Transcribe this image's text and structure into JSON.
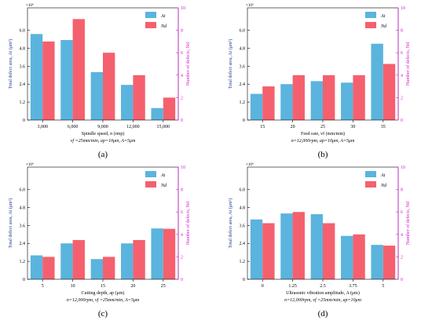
{
  "colors": {
    "area": "#5ab4de",
    "defects": "#f5606e",
    "right_axis": "#cc22cc",
    "left_axis_label": "#1f3c8c"
  },
  "chart_data": [
    {
      "type": "bar",
      "panel_label": "(a)",
      "xlabel": "Spindle speed, n (rmp)",
      "caption": "vf =25mm/min, ap=10μm, A=5μm",
      "ylabel_left": "Total defect area, At (μm²)",
      "ylabel_right": "Number of defects, Nd",
      "y_left_multiplier": "×10⁴",
      "ylim_left": [
        0,
        7.5
      ],
      "ylim_right": [
        0,
        10
      ],
      "yticks_left": [
        "0",
        "1.2",
        "2.4",
        "3.6",
        "4.8",
        "6.0"
      ],
      "yticks_right": [
        "0",
        "2",
        "4",
        "6",
        "8",
        "10"
      ],
      "categories": [
        "3,000",
        "6,000",
        "9,000",
        "12,000",
        "15,000"
      ],
      "legend": [
        "At",
        "Nd"
      ],
      "series": [
        {
          "name": "At",
          "values": [
            5.75,
            5.35,
            3.2,
            2.35,
            0.8
          ]
        },
        {
          "name": "Nd",
          "values": [
            7.0,
            9.0,
            6.0,
            4.0,
            2.0
          ]
        }
      ]
    },
    {
      "type": "bar",
      "panel_label": "(b)",
      "xlabel": "Feed rate, vf (mm/min)",
      "caption": "n=12,000rpm, ap=10μm, A=5μm",
      "ylabel_left": "Total defect area, At (μm²)",
      "ylabel_right": "Number of defects, Nd",
      "y_left_multiplier": "×10⁴",
      "ylim_left": [
        0,
        7.5
      ],
      "ylim_right": [
        0,
        10
      ],
      "yticks_left": [
        "0",
        "1.2",
        "2.4",
        "3.6",
        "4.8",
        "6.0"
      ],
      "yticks_right": [
        "0",
        "2",
        "4",
        "6",
        "8",
        "10"
      ],
      "categories": [
        "15",
        "20",
        "25",
        "30",
        "35"
      ],
      "legend": [
        "At",
        "Nd"
      ],
      "series": [
        {
          "name": "At",
          "values": [
            1.75,
            2.4,
            2.6,
            2.5,
            5.1
          ]
        },
        {
          "name": "Nd",
          "values": [
            3.0,
            4.0,
            4.0,
            4.0,
            5.0
          ]
        }
      ]
    },
    {
      "type": "bar",
      "panel_label": "(c)",
      "xlabel": "Cutting depth, ap (μm)",
      "caption": "n=12,000rpm, vf =25mm/min, A=5μm",
      "ylabel_left": "Total defect area, At (μm²)",
      "ylabel_right": "Number of defects, Nd",
      "y_left_multiplier": "×10⁴",
      "ylim_left": [
        0,
        7.5
      ],
      "ylim_right": [
        0,
        10
      ],
      "yticks_left": [
        "0",
        "1.2",
        "2.4",
        "3.6",
        "4.8",
        "6.0"
      ],
      "yticks_right": [
        "0",
        "2",
        "4",
        "6",
        "8",
        "10"
      ],
      "categories": [
        "5",
        "10",
        "15",
        "20",
        "25"
      ],
      "legend": [
        "At",
        "Nd"
      ],
      "series": [
        {
          "name": "At",
          "values": [
            1.6,
            2.4,
            1.35,
            2.4,
            3.4
          ]
        },
        {
          "name": "Nd",
          "values": [
            2.0,
            3.5,
            2.0,
            3.5,
            4.5
          ]
        }
      ]
    },
    {
      "type": "bar",
      "panel_label": "(d)",
      "xlabel": "Ultrasonic vibration amplitude, A (μm)",
      "caption": "n=12,000rpm, vf =25mm/min, ap=10μm",
      "ylabel_left": "Total defect area, At (μm²)",
      "ylabel_right": "Number of defects, Nd",
      "y_left_multiplier": "×10⁴",
      "ylim_left": [
        0,
        7.5
      ],
      "ylim_right": [
        0,
        10
      ],
      "yticks_left": [
        "0",
        "1.2",
        "2.4",
        "3.6",
        "4.8",
        "6.0"
      ],
      "yticks_right": [
        "0",
        "2",
        "4",
        "6",
        "8",
        "10"
      ],
      "categories": [
        "0",
        "1.25",
        "2.5",
        "3.75",
        "5"
      ],
      "legend": [
        "At",
        "Nd"
      ],
      "series": [
        {
          "name": "At",
          "values": [
            4.0,
            4.4,
            4.35,
            2.9,
            2.3
          ]
        },
        {
          "name": "Nd",
          "values": [
            5.0,
            6.0,
            5.0,
            4.0,
            3.0
          ]
        }
      ]
    }
  ]
}
